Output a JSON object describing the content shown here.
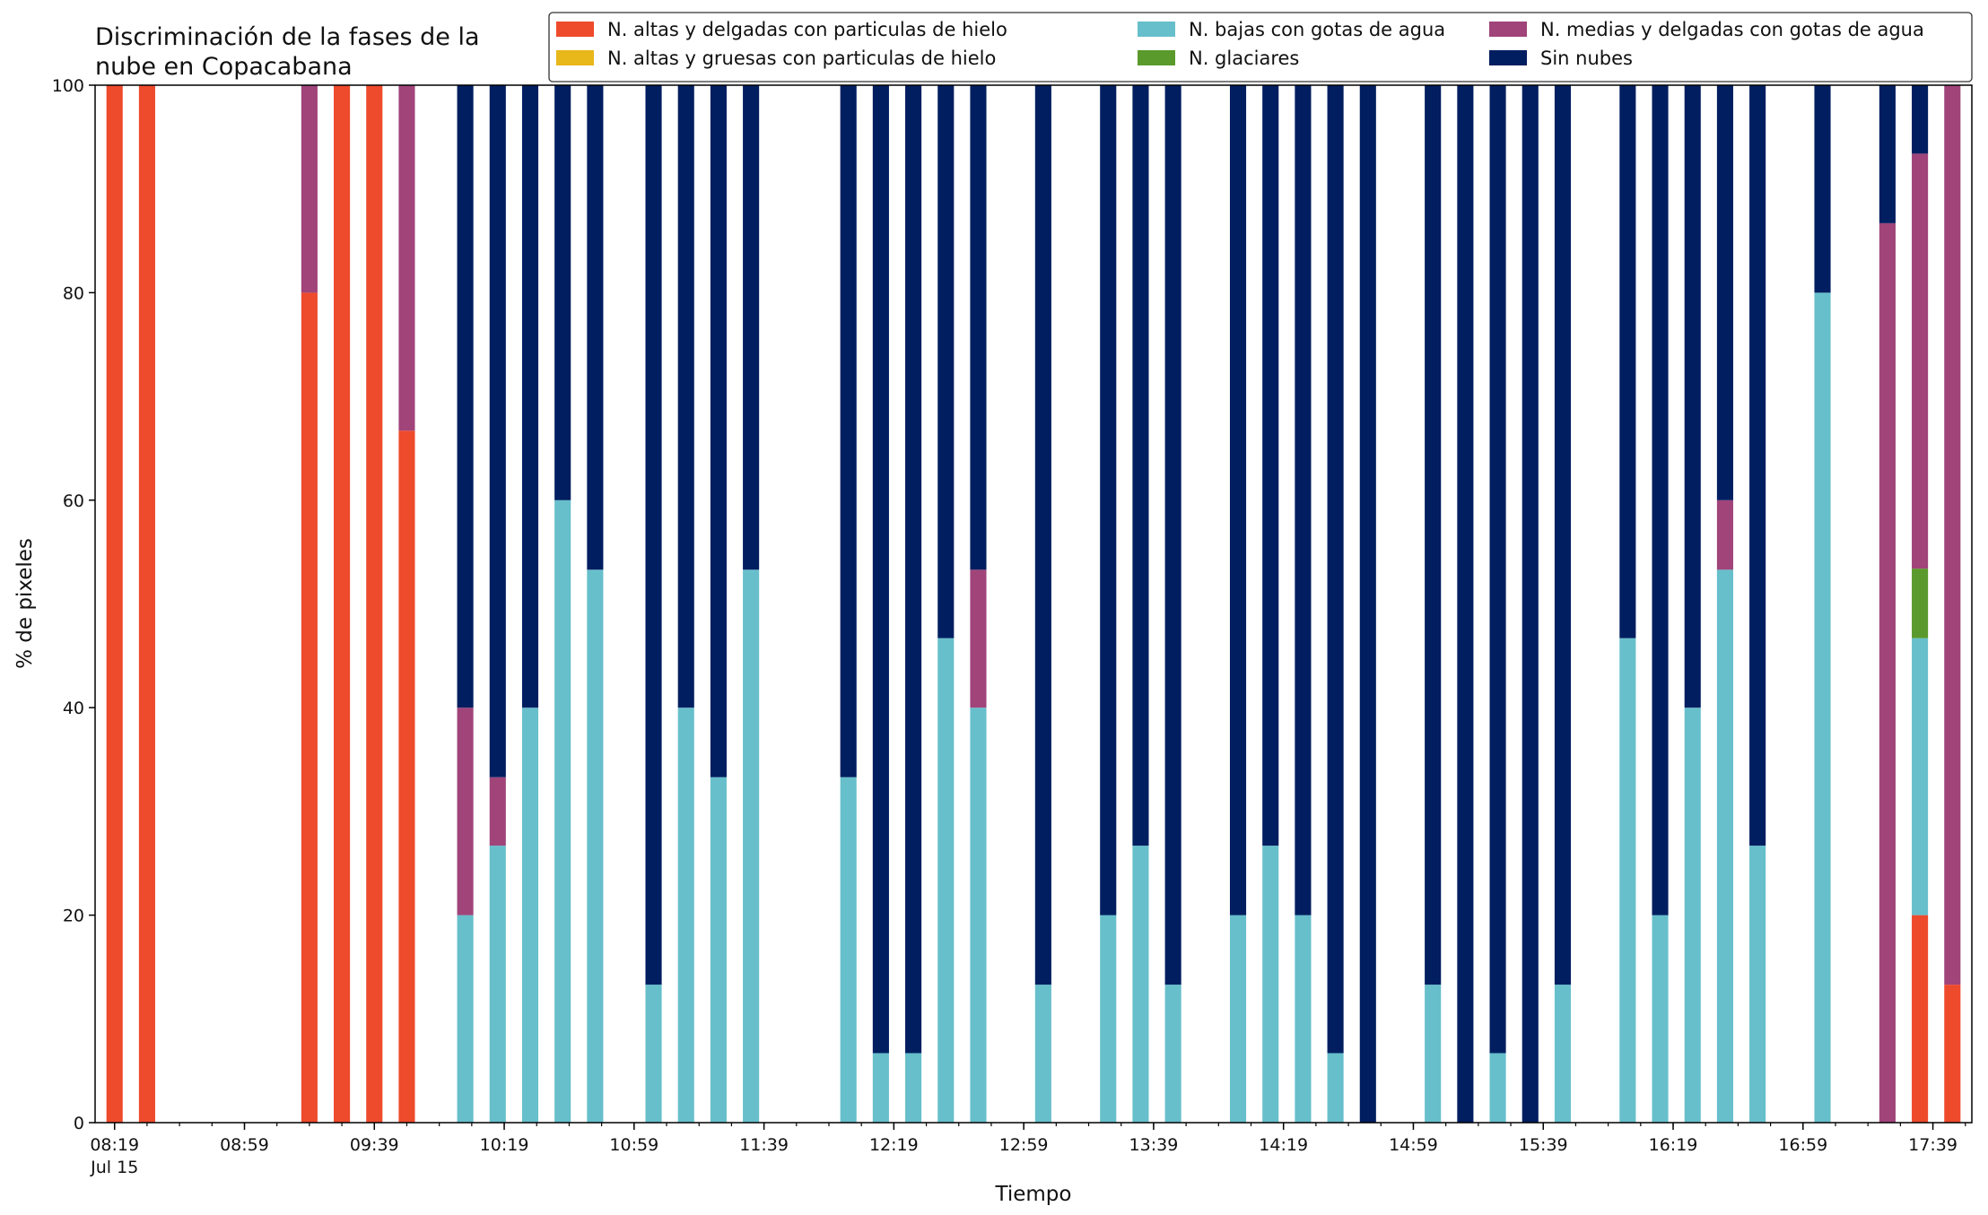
{
  "chart_data": {
    "type": "bar",
    "stacked": true,
    "title": "Discriminación de la fases de la nube en Copacabana",
    "xlabel": "Tiempo",
    "ylabel": "% de pixeles",
    "ylim": [
      0,
      100
    ],
    "yticks": [
      0,
      20,
      40,
      60,
      80,
      100
    ],
    "x_range_minutes": [
      "08:13",
      "17:51"
    ],
    "xticks": [
      {
        "time": "08:19",
        "label": "08:19",
        "sublabel": "Jul 15"
      },
      {
        "time": "08:59",
        "label": "08:59"
      },
      {
        "time": "09:39",
        "label": "09:39"
      },
      {
        "time": "10:19",
        "label": "10:19"
      },
      {
        "time": "10:59",
        "label": "10:59"
      },
      {
        "time": "11:39",
        "label": "11:39"
      },
      {
        "time": "12:19",
        "label": "12:19"
      },
      {
        "time": "12:59",
        "label": "12:59"
      },
      {
        "time": "13:39",
        "label": "13:39"
      },
      {
        "time": "14:19",
        "label": "14:19"
      },
      {
        "time": "14:59",
        "label": "14:59"
      },
      {
        "time": "15:39",
        "label": "15:39"
      },
      {
        "time": "16:19",
        "label": "16:19"
      },
      {
        "time": "16:59",
        "label": "16:59"
      },
      {
        "time": "17:39",
        "label": "17:39"
      }
    ],
    "minor_tick_interval_minutes": 10,
    "legend_position": "top-right",
    "legend_order": [
      0,
      1,
      2,
      3,
      4,
      5
    ],
    "series": [
      {
        "name": "N. altas y delgadas con particulas de hielo",
        "color": "#ee4a2c"
      },
      {
        "name": "N. altas y gruesas con particulas de hielo",
        "color": "#e8b71a"
      },
      {
        "name": "N. bajas con gotas de agua",
        "color": "#67bfcb"
      },
      {
        "name": "N. glaciares",
        "color": "#5a9a2c"
      },
      {
        "name": "N. medias y delgadas con gotas de agua",
        "color": "#a0447a"
      },
      {
        "name": "Sin nubes",
        "color": "#001e60"
      }
    ],
    "bars": [
      {
        "time": "08:19",
        "values": [
          100,
          0,
          0,
          0,
          0,
          0
        ]
      },
      {
        "time": "08:29",
        "values": [
          100,
          0,
          0,
          0,
          0,
          0
        ]
      },
      {
        "time": "09:19",
        "values": [
          80,
          0,
          0,
          0,
          20,
          0
        ]
      },
      {
        "time": "09:29",
        "values": [
          100,
          0,
          0,
          0,
          0,
          0
        ]
      },
      {
        "time": "09:39",
        "values": [
          100,
          0,
          0,
          0,
          0,
          0
        ]
      },
      {
        "time": "09:49",
        "values": [
          66.7,
          0,
          0,
          0,
          33.3,
          0
        ]
      },
      {
        "time": "10:07",
        "values": [
          0,
          0,
          20,
          0,
          20,
          60
        ]
      },
      {
        "time": "10:17",
        "values": [
          0,
          0,
          26.7,
          0,
          6.6,
          66.7
        ]
      },
      {
        "time": "10:27",
        "values": [
          0,
          0,
          40,
          0,
          0,
          60
        ]
      },
      {
        "time": "10:37",
        "values": [
          0,
          0,
          60,
          0,
          0,
          40
        ]
      },
      {
        "time": "10:47",
        "values": [
          0,
          0,
          53.3,
          0,
          0,
          46.7
        ]
      },
      {
        "time": "11:05",
        "values": [
          0,
          0,
          13.3,
          0,
          0,
          86.7
        ]
      },
      {
        "time": "11:15",
        "values": [
          0,
          0,
          40,
          0,
          0,
          60
        ]
      },
      {
        "time": "11:25",
        "values": [
          0,
          0,
          33.3,
          0,
          0,
          66.7
        ]
      },
      {
        "time": "11:35",
        "values": [
          0,
          0,
          53.3,
          0,
          0,
          46.7
        ]
      },
      {
        "time": "12:05",
        "values": [
          0,
          0,
          33.3,
          0,
          0,
          66.7
        ]
      },
      {
        "time": "12:15",
        "values": [
          0,
          0,
          6.7,
          0,
          0,
          93.3
        ]
      },
      {
        "time": "12:25",
        "values": [
          0,
          0,
          6.7,
          0,
          0,
          93.3
        ]
      },
      {
        "time": "12:35",
        "values": [
          0,
          0,
          46.7,
          0,
          0,
          53.3
        ]
      },
      {
        "time": "12:45",
        "values": [
          0,
          0,
          40,
          0,
          13.3,
          46.7
        ]
      },
      {
        "time": "13:05",
        "values": [
          0,
          0,
          13.3,
          0,
          0,
          86.7
        ]
      },
      {
        "time": "13:25",
        "values": [
          0,
          0,
          20,
          0,
          0,
          80
        ]
      },
      {
        "time": "13:35",
        "values": [
          0,
          0,
          26.7,
          0,
          0,
          73.3
        ]
      },
      {
        "time": "13:45",
        "values": [
          0,
          0,
          13.3,
          0,
          0,
          86.7
        ]
      },
      {
        "time": "14:05",
        "values": [
          0,
          0,
          20,
          0,
          0,
          80
        ]
      },
      {
        "time": "14:15",
        "values": [
          0,
          0,
          26.7,
          0,
          0,
          73.3
        ]
      },
      {
        "time": "14:25",
        "values": [
          0,
          0,
          20,
          0,
          0,
          80
        ]
      },
      {
        "time": "14:35",
        "values": [
          0,
          0,
          6.7,
          0,
          0,
          93.3
        ]
      },
      {
        "time": "14:45",
        "values": [
          0,
          0,
          0,
          0,
          0,
          100
        ]
      },
      {
        "time": "15:05",
        "values": [
          0,
          0,
          13.3,
          0,
          0,
          86.7
        ]
      },
      {
        "time": "15:15",
        "values": [
          0,
          0,
          0,
          0,
          0,
          100
        ]
      },
      {
        "time": "15:25",
        "values": [
          0,
          0,
          6.7,
          0,
          0,
          93.3
        ]
      },
      {
        "time": "15:35",
        "values": [
          0,
          0,
          0,
          0,
          0,
          100
        ]
      },
      {
        "time": "15:45",
        "values": [
          0,
          0,
          13.3,
          0,
          0,
          86.7
        ]
      },
      {
        "time": "16:05",
        "values": [
          0,
          0,
          46.7,
          0,
          0,
          53.3
        ]
      },
      {
        "time": "16:15",
        "values": [
          0,
          0,
          20,
          0,
          0,
          80
        ]
      },
      {
        "time": "16:25",
        "values": [
          0,
          0,
          40,
          0,
          0,
          60
        ]
      },
      {
        "time": "16:35",
        "values": [
          0,
          0,
          53.3,
          0,
          6.7,
          40
        ]
      },
      {
        "time": "16:45",
        "values": [
          0,
          0,
          26.7,
          0,
          0,
          73.3
        ]
      },
      {
        "time": "17:05",
        "values": [
          0,
          0,
          80,
          0,
          0,
          20
        ]
      },
      {
        "time": "17:25",
        "values": [
          0,
          0,
          0,
          0,
          86.7,
          13.3
        ]
      },
      {
        "time": "17:35",
        "values": [
          20,
          0,
          26.7,
          6.7,
          40,
          6.6
        ]
      },
      {
        "time": "17:45",
        "values": [
          13.3,
          0,
          0,
          0,
          86.7,
          0
        ]
      }
    ],
    "grid": false
  }
}
